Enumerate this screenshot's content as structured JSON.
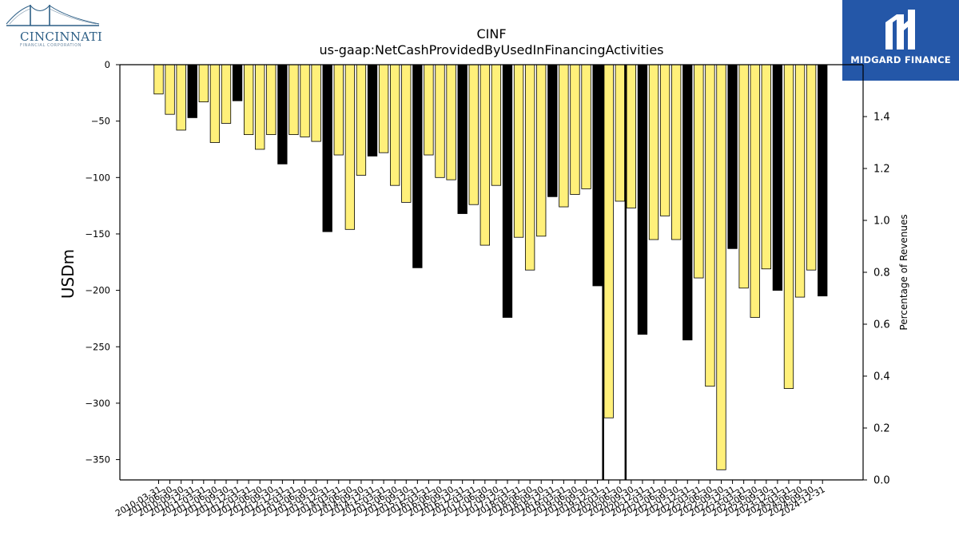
{
  "logos": {
    "left_brand": "CINCINNATI",
    "left_sub": "FINANCIAL CORPORATION",
    "right_brand": "MIDGARD FINANCE",
    "right_bg_color": "#2457a8"
  },
  "chart_data": {
    "type": "bar",
    "title": "CINF",
    "subtitle": "us-gaap:NetCashProvidedByUsedInFinancingActivities",
    "ylabel": "USDm",
    "y2label": "Percentage of Revenues",
    "ylim": [
      -368,
      0
    ],
    "yticks": [
      0,
      -50,
      -100,
      -150,
      -200,
      -250,
      -300,
      -350
    ],
    "y2lim": [
      0,
      1.6
    ],
    "y2ticks": [
      "0.0",
      "0.2",
      "0.4",
      "0.6",
      "0.8",
      "1.0",
      "1.2",
      "1.4"
    ],
    "colors": {
      "quarter": "#fff07a",
      "annual": "#000000"
    },
    "legend": "none",
    "grid": false,
    "categories": [
      "2010-03-31",
      "2010-06-30",
      "2010-09-30",
      "2010-12-31",
      "2011-03-31",
      "2011-06-30",
      "2011-09-30",
      "2011-12-31",
      "2012-03-31",
      "2012-06-30",
      "2012-09-30",
      "2012-12-31",
      "2013-03-31",
      "2013-06-30",
      "2013-09-30",
      "2013-12-31",
      "2014-03-31",
      "2014-06-30",
      "2014-09-30",
      "2014-12-31",
      "2015-03-31",
      "2015-06-30",
      "2015-09-30",
      "2015-12-31",
      "2016-03-31",
      "2016-06-30",
      "2016-09-30",
      "2016-12-31",
      "2017-03-31",
      "2017-06-30",
      "2017-09-30",
      "2017-12-31",
      "2018-03-31",
      "2018-06-30",
      "2018-09-30",
      "2018-12-31",
      "2019-03-31",
      "2019-06-30",
      "2019-09-30",
      "2019-12-31",
      "2020-03-31",
      "2020-06-30",
      "2020-09-30",
      "2020-12-31",
      "2021-03-31",
      "2021-06-30",
      "2021-09-30",
      "2021-12-31",
      "2022-03-31",
      "2022-06-30",
      "2022-09-30",
      "2022-12-31",
      "2023-03-31",
      "2023-06-30",
      "2023-09-30",
      "2023-12-31",
      "2024-03-31",
      "2024-06-30",
      "2024-09-30",
      "2024-12-31"
    ],
    "tick_labels": [
      "2010-03-31",
      "2010-06-30",
      "2010-09-30",
      "2010-12-31",
      "2011-03-31",
      "2011-06-30",
      "2011-09-30",
      "2011-12-31",
      "2012-03-31",
      "2012-06-30",
      "2012-09-30",
      "2012-12-31",
      "2013-03-31",
      "2013-06-30",
      "2013-09-30",
      "2013-12-31",
      "2014-03-31",
      "2014-06-30",
      "2014-09-30",
      "2014-12-31",
      "2015-03-31",
      "2015-06-30",
      "2015-09-30",
      "2015-12-31",
      "2016-03-31",
      "2016-06-30",
      "2016-09-30",
      "2016-12-31",
      "2017-03-31",
      "2017-06-30",
      "2017-09-30",
      "2017-12-31",
      "2018-03-31",
      "2018-06-30",
      "2018-09-30",
      "2018-12-31",
      "2019-03-31",
      "2019-06-30",
      "2019-09-30",
      "2019-12-31",
      "2020-03-31",
      "2020-06-30",
      "2020-09-30",
      "2020-12-31",
      "2021-03-31",
      "2021-06-30",
      "2021-09-30",
      "2021-12-31",
      "2022-03-31",
      "2022-06-30",
      "2022-09-30",
      "2022-12-31",
      "2023-03-31",
      "2023-06-30",
      "2023-09-30",
      "2023-12-31",
      "2024-03-31",
      "2024-06-30",
      "2024-09-30",
      "2024-12-31"
    ],
    "values": [
      -26,
      -44,
      -58,
      -47,
      -33,
      -69,
      -52,
      -32,
      -62,
      -75,
      -62,
      -88,
      -62,
      -64,
      -68,
      -148,
      -80,
      -146,
      -98,
      -81,
      -78,
      -107,
      -122,
      -180,
      -80,
      -100,
      -102,
      -132,
      -124,
      -160,
      -107,
      -224,
      -153,
      -182,
      -152,
      -117,
      -126,
      -115,
      -110,
      -196,
      -313,
      -121,
      -127,
      -239,
      -155,
      -134,
      -155,
      -244,
      -189,
      -285,
      -359,
      -163,
      -198,
      -224,
      -181,
      -200,
      -287,
      -206,
      -182,
      -205
    ],
    "annual_flags": [
      false,
      false,
      false,
      true,
      false,
      false,
      false,
      true,
      false,
      false,
      false,
      true,
      false,
      false,
      false,
      true,
      false,
      false,
      false,
      true,
      false,
      false,
      false,
      true,
      false,
      false,
      false,
      true,
      false,
      false,
      false,
      true,
      false,
      false,
      false,
      true,
      false,
      false,
      false,
      true,
      false,
      false,
      false,
      true,
      false,
      false,
      false,
      true,
      false,
      false,
      false,
      true,
      false,
      false,
      false,
      true,
      false,
      false,
      false,
      true
    ],
    "vertical_lines_after_categories": [
      "2019-12-31",
      "2020-06-30"
    ]
  }
}
